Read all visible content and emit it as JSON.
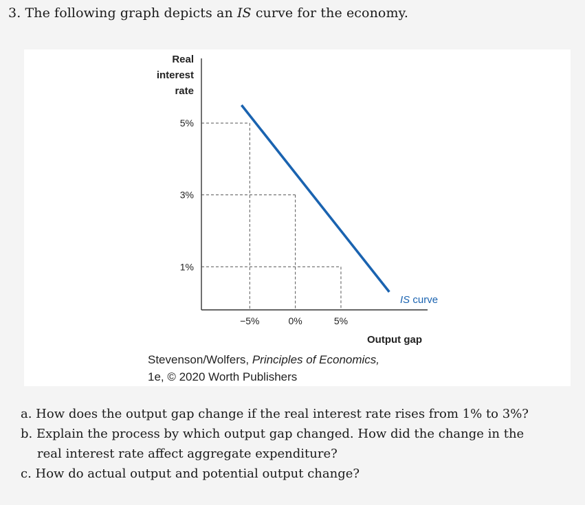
{
  "question": {
    "number": "3.",
    "text_before": "The following graph depicts an",
    "is_term": "IS",
    "text_after": "curve for the economy."
  },
  "chart_data": {
    "type": "line",
    "ylabel_lines": [
      "Real",
      "interest",
      "rate"
    ],
    "xlabel": "Output gap",
    "x_ticks": [
      {
        "value": -5,
        "label": "−5%"
      },
      {
        "value": 0,
        "label": "0%"
      },
      {
        "value": 5,
        "label": "5%"
      }
    ],
    "y_ticks": [
      {
        "value": 5,
        "label": "5%"
      },
      {
        "value": 3,
        "label": "3%"
      },
      {
        "value": 1,
        "label": "1%"
      }
    ],
    "xlim": [
      -10.3,
      14.5
    ],
    "ylim": [
      -0.2,
      6.8
    ],
    "series": [
      {
        "name": "IS curve",
        "color": "#1a63b0",
        "x": [
          -5.9,
          10.3
        ],
        "y": [
          5.5,
          0.3
        ]
      }
    ],
    "reference_points": [
      {
        "x": -5,
        "y": 5
      },
      {
        "x": 0,
        "y": 3
      },
      {
        "x": 5,
        "y": 1
      }
    ],
    "series_label": {
      "italic": "IS",
      "rest": " curve"
    },
    "grid": false
  },
  "caption": {
    "authors": "Stevenson/Wolfers,",
    "book_title": "Principles of Economics,",
    "line2": "1e, © 2020 Worth Publishers"
  },
  "parts": {
    "a": "a. How does the output gap change if the real interest rate rises from 1% to 3%?",
    "b1": "b. Explain the process by which output gap changed. How did the change in the",
    "b2": "real interest rate affect aggregate expenditure?",
    "c": "c. How do actual output and potential output change?"
  }
}
